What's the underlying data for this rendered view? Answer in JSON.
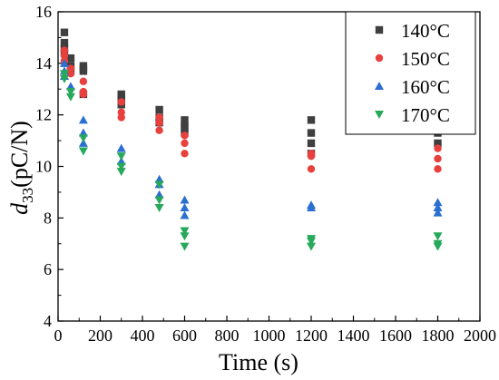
{
  "chart_data": {
    "type": "scatter",
    "xlabel": "Time (s)",
    "ylabel_main": "d",
    "ylabel_sub": "33",
    "ylabel_unit": "(pC/N)",
    "xlim": [
      0,
      2000
    ],
    "ylim": [
      4,
      16
    ],
    "xticks": [
      "0",
      "200",
      "400",
      "600",
      "800",
      "1000",
      "1200",
      "1400",
      "1600",
      "1800",
      "2000"
    ],
    "yticks": [
      "4",
      "6",
      "8",
      "10",
      "12",
      "14",
      "16"
    ],
    "grid": false,
    "legend_position": "top-right",
    "series": [
      {
        "name": "140°C",
        "marker": "square",
        "color": "#3f3f3f",
        "points": [
          [
            30,
            15.2
          ],
          [
            30,
            14.8
          ],
          [
            30,
            14.6
          ],
          [
            30,
            14.4
          ],
          [
            60,
            14.2
          ],
          [
            60,
            13.9
          ],
          [
            60,
            13.7
          ],
          [
            120,
            13.9
          ],
          [
            120,
            13.8
          ],
          [
            120,
            13.7
          ],
          [
            120,
            12.8
          ],
          [
            300,
            12.8
          ],
          [
            300,
            12.7
          ],
          [
            300,
            12.6
          ],
          [
            300,
            12.4
          ],
          [
            480,
            12.2
          ],
          [
            480,
            11.9
          ],
          [
            480,
            11.7
          ],
          [
            600,
            11.8
          ],
          [
            600,
            11.6
          ],
          [
            600,
            11.5
          ],
          [
            600,
            11.3
          ],
          [
            1200,
            11.8
          ],
          [
            1200,
            11.3
          ],
          [
            1200,
            10.9
          ],
          [
            1200,
            10.5
          ],
          [
            1800,
            11.3
          ],
          [
            1800,
            10.9
          ]
        ]
      },
      {
        "name": "150°C",
        "marker": "circle",
        "color": "#e8403d",
        "points": [
          [
            30,
            14.5
          ],
          [
            30,
            14.3
          ],
          [
            30,
            14.1
          ],
          [
            60,
            13.8
          ],
          [
            60,
            13.6
          ],
          [
            120,
            13.3
          ],
          [
            120,
            12.9
          ],
          [
            120,
            12.8
          ],
          [
            300,
            12.5
          ],
          [
            300,
            12.1
          ],
          [
            300,
            11.9
          ],
          [
            480,
            11.9
          ],
          [
            480,
            11.7
          ],
          [
            480,
            11.4
          ],
          [
            600,
            11.2
          ],
          [
            600,
            10.9
          ],
          [
            600,
            10.5
          ],
          [
            1200,
            10.5
          ],
          [
            1200,
            10.4
          ],
          [
            1200,
            9.9
          ],
          [
            1800,
            10.7
          ],
          [
            1800,
            10.3
          ],
          [
            1800,
            9.9
          ]
        ]
      },
      {
        "name": "160°C",
        "marker": "triangle-up",
        "color": "#2b6fd0",
        "points": [
          [
            30,
            14.0
          ],
          [
            30,
            13.7
          ],
          [
            30,
            13.5
          ],
          [
            60,
            13.1
          ],
          [
            120,
            11.8
          ],
          [
            120,
            11.3
          ],
          [
            120,
            10.9
          ],
          [
            300,
            10.7
          ],
          [
            300,
            10.2
          ],
          [
            480,
            9.5
          ],
          [
            480,
            9.3
          ],
          [
            480,
            8.9
          ],
          [
            600,
            8.7
          ],
          [
            600,
            8.4
          ],
          [
            600,
            8.1
          ],
          [
            1200,
            8.5
          ],
          [
            1200,
            8.4
          ],
          [
            1800,
            8.6
          ],
          [
            1800,
            8.4
          ],
          [
            1800,
            8.2
          ]
        ]
      },
      {
        "name": "170°C",
        "marker": "triangle-down",
        "color": "#27a85b",
        "points": [
          [
            30,
            13.6
          ],
          [
            30,
            13.4
          ],
          [
            60,
            12.9
          ],
          [
            60,
            12.7
          ],
          [
            120,
            11.1
          ],
          [
            120,
            10.6
          ],
          [
            300,
            10.4
          ],
          [
            300,
            10.0
          ],
          [
            300,
            9.8
          ],
          [
            480,
            9.3
          ],
          [
            480,
            8.7
          ],
          [
            480,
            8.4
          ],
          [
            600,
            7.5
          ],
          [
            600,
            7.3
          ],
          [
            600,
            6.9
          ],
          [
            1200,
            7.2
          ],
          [
            1200,
            7.1
          ],
          [
            1200,
            6.9
          ],
          [
            1800,
            7.3
          ],
          [
            1800,
            7.0
          ],
          [
            1800,
            6.9
          ]
        ]
      }
    ]
  }
}
